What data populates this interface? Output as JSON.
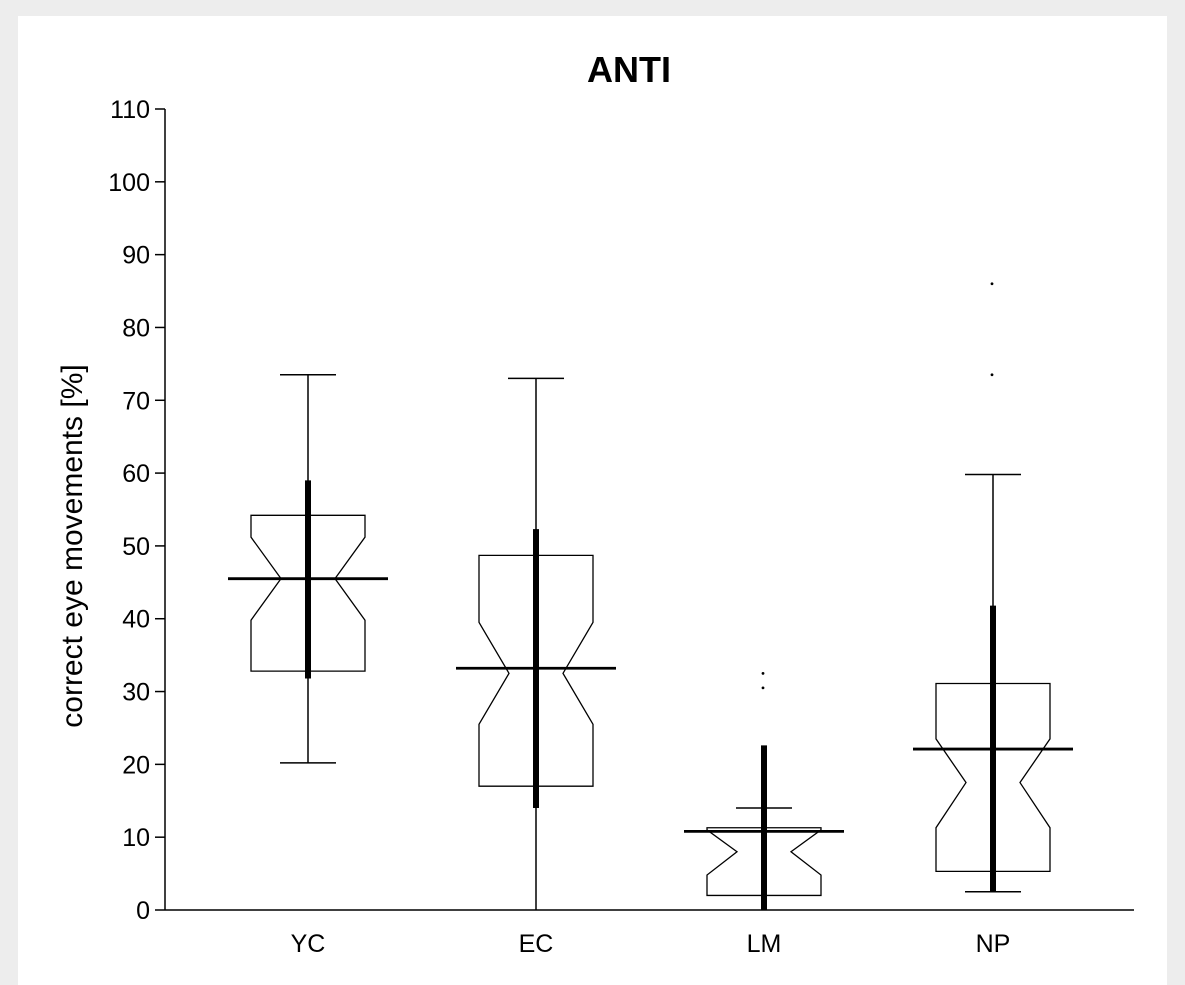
{
  "chart_data": {
    "type": "boxplot",
    "title": "ANTI",
    "xlabel": "",
    "ylabel": "correct eye movements [%]",
    "ylim": [
      0,
      110
    ],
    "yticks": [
      0,
      10,
      20,
      30,
      40,
      50,
      60,
      70,
      80,
      90,
      100,
      110
    ],
    "grid": false,
    "categories": [
      "YC",
      "EC",
      "LM",
      "NP"
    ],
    "boxes": [
      {
        "category": "YC",
        "whisker_low": 20.2,
        "q1": 32.8,
        "notch_low": 39.8,
        "median": 45.5,
        "notch_high": 51.2,
        "q3": 54.2,
        "whisker_high": 73.5,
        "mean": 45.5,
        "sd_low": 31.8,
        "sd_high": 59.0,
        "outliers": []
      },
      {
        "category": "EC",
        "whisker_low": 0.0,
        "q1": 17.0,
        "notch_low": 25.5,
        "median": 32.5,
        "notch_high": 39.5,
        "q3": 48.7,
        "whisker_high": 73.0,
        "mean": 33.2,
        "sd_low": 14.0,
        "sd_high": 52.3,
        "outliers": []
      },
      {
        "category": "LM",
        "whisker_low": 0.0,
        "q1": 2.0,
        "notch_low": 4.8,
        "median": 8.0,
        "notch_high": 11.0,
        "q3": 11.3,
        "whisker_high": 14.0,
        "mean": 10.8,
        "sd_low": 0.0,
        "sd_high": 22.6,
        "outliers": [
          30.5,
          32.5
        ]
      },
      {
        "category": "NP",
        "whisker_low": 2.5,
        "q1": 5.3,
        "notch_low": 11.3,
        "median": 17.5,
        "notch_high": 23.5,
        "q3": 31.1,
        "whisker_high": 59.8,
        "mean": 22.1,
        "sd_low": 2.5,
        "sd_high": 41.8,
        "outliers": [
          73.5,
          86.0
        ]
      }
    ]
  }
}
